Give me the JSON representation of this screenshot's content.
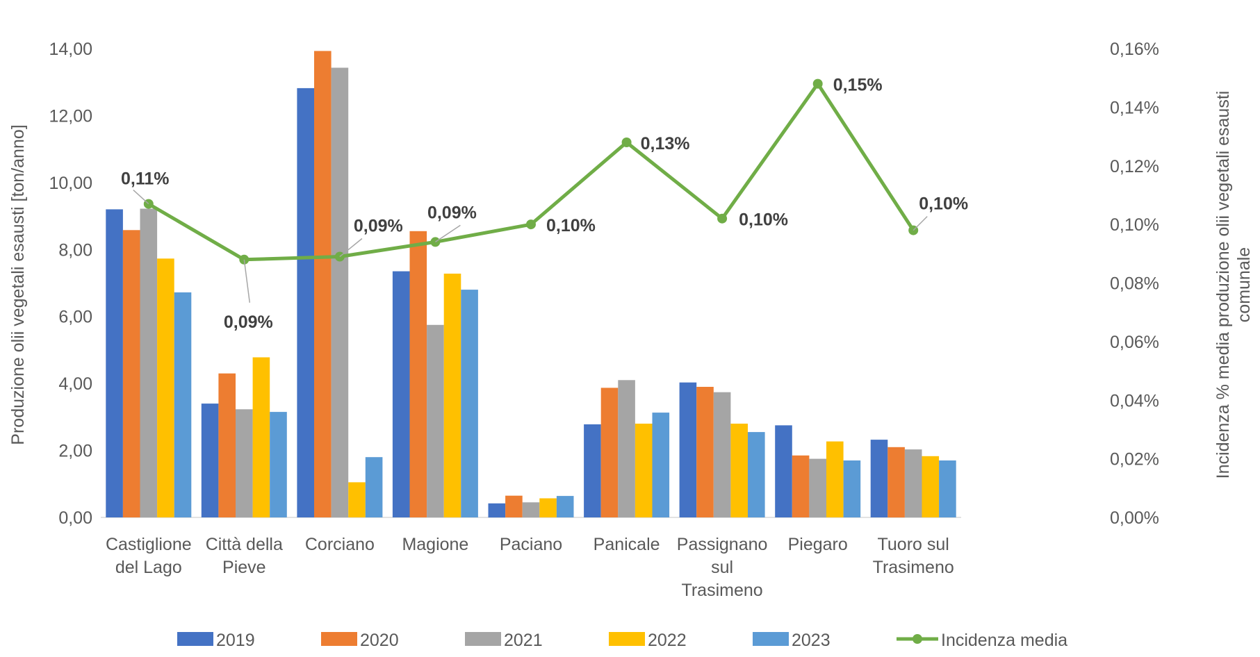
{
  "chart_data": {
    "type": "bar",
    "categories": [
      [
        "Castiglione",
        "del Lago"
      ],
      [
        "Città della",
        "Pieve"
      ],
      [
        "Corciano"
      ],
      [
        "Magione"
      ],
      [
        "Paciano"
      ],
      [
        "Panicale"
      ],
      [
        "Passignano",
        "sul",
        "Trasimeno"
      ],
      [
        "Piegaro"
      ],
      [
        "Tuoro sul",
        "Trasimeno"
      ]
    ],
    "series": [
      {
        "name": "2019",
        "color": "#4472C4",
        "values": [
          9.2,
          3.4,
          12.82,
          7.35,
          0.42,
          2.78,
          4.03,
          2.75,
          2.32
        ]
      },
      {
        "name": "2020",
        "color": "#ED7D31",
        "values": [
          8.58,
          4.3,
          13.93,
          8.55,
          0.65,
          3.87,
          3.9,
          1.85,
          2.1
        ]
      },
      {
        "name": "2021",
        "color": "#A5A5A5",
        "values": [
          9.22,
          3.23,
          13.43,
          5.75,
          0.45,
          4.1,
          3.74,
          1.75,
          2.03
        ]
      },
      {
        "name": "2022",
        "color": "#FFC000",
        "values": [
          7.73,
          4.78,
          1.05,
          7.28,
          0.57,
          2.8,
          2.8,
          2.27,
          1.83
        ]
      },
      {
        "name": "2023",
        "color": "#5B9BD5",
        "values": [
          6.72,
          3.15,
          1.8,
          6.8,
          0.64,
          3.13,
          2.55,
          1.7,
          1.7
        ]
      }
    ],
    "line_series": {
      "name": "Incidenza media",
      "color": "#70AD47",
      "axis": "right",
      "values": [
        0.107,
        0.088,
        0.089,
        0.094,
        0.1,
        0.128,
        0.102,
        0.148,
        0.098
      ],
      "labels": [
        "0,11%",
        "0,09%",
        "0,09%",
        "0,09%",
        "0,10%",
        "0,13%",
        "0,10%",
        "0,15%",
        "0,10%"
      ]
    },
    "ylabel": "Produzione olii vegetali esausti [ton/anno]",
    "y2label": [
      "Incidenza % media  produzione olii vegetali esausti",
      "comunale"
    ],
    "ylim": [
      0,
      14
    ],
    "y2lim": [
      0,
      0.16
    ],
    "yticks": [
      "0,00",
      "2,00",
      "4,00",
      "6,00",
      "8,00",
      "10,00",
      "12,00",
      "14,00"
    ],
    "y2ticks": [
      "0,00%",
      "0,02%",
      "0,04%",
      "0,06%",
      "0,08%",
      "0,10%",
      "0,12%",
      "0,14%",
      "0,16%"
    ],
    "grid": false,
    "legend_position": "bottom"
  }
}
